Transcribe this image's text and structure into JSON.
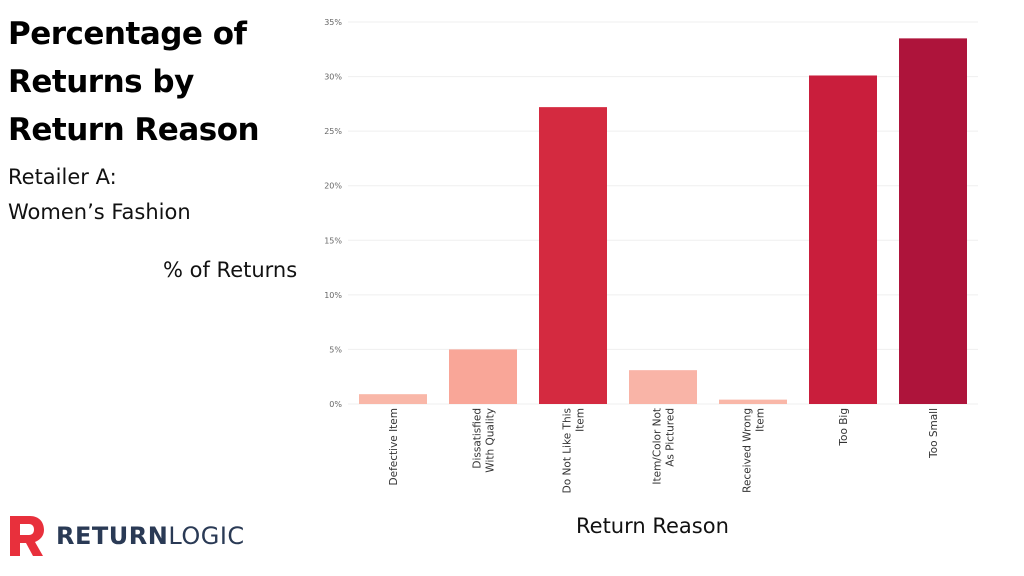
{
  "title": "Percentage of Returns by Return Reason",
  "subtitle_line1": "Retailer A:",
  "subtitle_line2": "Women’s Fashion",
  "logo": {
    "word1": "RETURN",
    "word2": "LOGIC",
    "icon": "r-logo-icon",
    "color": "#e8303c"
  },
  "chart_data": {
    "type": "bar",
    "title": "Percentage of Returns by Return Reason",
    "subtitle": "Retailer A: Women’s Fashion",
    "xlabel": "Return Reason",
    "ylabel": "% of Returns",
    "ylim": [
      0,
      35
    ],
    "yticks": [
      "0%",
      "5%",
      "10%",
      "15%",
      "20%",
      "25%",
      "30%",
      "35%"
    ],
    "grid": true,
    "categories": [
      [
        "Defective Item"
      ],
      [
        "Dissatisfied",
        "With Quality"
      ],
      [
        "Do Not Like This",
        "Item"
      ],
      [
        "Item/Color Not",
        "As Pictured"
      ],
      [
        "Received Wrong",
        "Item"
      ],
      [
        "Too Big"
      ],
      [
        "Too Small"
      ]
    ],
    "values": [
      0.9,
      5.0,
      27.2,
      3.1,
      0.4,
      30.1,
      33.5
    ],
    "colors": [
      "#f9b7a8",
      "#f9a698",
      "#d42a40",
      "#f9b4a7",
      "#f9b7a8",
      "#c91e3c",
      "#ae143b"
    ]
  }
}
